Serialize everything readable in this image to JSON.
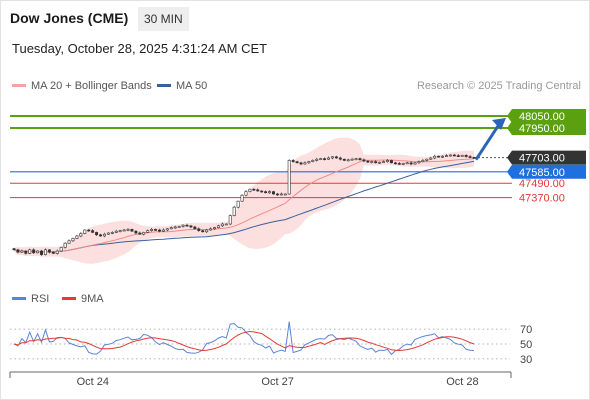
{
  "header": {
    "title": "Dow Jones (CME)",
    "timeframe": "30 MIN",
    "datetime": "Tuesday, October 28, 2025 4:31:24 AM CET"
  },
  "legend": {
    "items": [
      {
        "label": "MA 20 + Bollinger Bands",
        "color": "#f4a3a3"
      },
      {
        "label": "MA 50",
        "color": "#3b5f9e"
      }
    ],
    "credit": "Research © 2025 Trading Central"
  },
  "colors": {
    "target": "#5aa00f",
    "resistance_price": "#333333",
    "pivot": "#1e6fe0",
    "support": "#e53935",
    "bb_fill": "#fbdada",
    "ma20": "#f08a8a",
    "ma50": "#3b5f9e",
    "rsi": "#5b84d6",
    "rsi_ma": "#e53935",
    "arrow": "#2a65b8"
  },
  "price_levels": [
    {
      "value": 48050,
      "label": "48050.00",
      "kind": "target"
    },
    {
      "value": 47950,
      "label": "47950.00",
      "kind": "target"
    },
    {
      "value": 47703,
      "label": "47703.00",
      "kind": "last"
    },
    {
      "value": 47585,
      "label": "47585.00",
      "kind": "pivot"
    },
    {
      "value": 47490,
      "label": "47490.00",
      "kind": "support"
    },
    {
      "value": 47370,
      "label": "47370.00",
      "kind": "support"
    }
  ],
  "rsi_panel": {
    "legend": [
      {
        "label": "RSI",
        "color": "#5b84d6"
      },
      {
        "label": "9MA",
        "color": "#e53935"
      }
    ],
    "levels": [
      {
        "value": 70,
        "label": "70"
      },
      {
        "value": 50,
        "label": "50"
      },
      {
        "value": 30,
        "label": "30"
      }
    ]
  },
  "x_axis": {
    "labels": [
      {
        "label": "Oct 24",
        "index": 20
      },
      {
        "label": "Oct 27",
        "index": 67
      },
      {
        "label": "Oct 28",
        "index": 114
      }
    ]
  },
  "chart_data": {
    "type": "candlestick",
    "title": "",
    "xlabel": "",
    "ylabel": "",
    "ylim": [
      46700,
      48200
    ],
    "series": [
      {
        "name": "Close",
        "values": [
          46935,
          46915,
          46925,
          46905,
          46935,
          46910,
          46925,
          46895,
          46935,
          46915,
          46905,
          46925,
          46955,
          46990,
          47010,
          47030,
          47050,
          47070,
          47100,
          47095,
          47080,
          47060,
          47050,
          47065,
          47075,
          47080,
          47090,
          47095,
          47100,
          47105,
          47090,
          47075,
          47065,
          47080,
          47095,
          47105,
          47100,
          47090,
          47100,
          47110,
          47120,
          47125,
          47130,
          47140,
          47135,
          47125,
          47110,
          47095,
          47085,
          47100,
          47110,
          47120,
          47135,
          47150,
          47150,
          47220,
          47290,
          47340,
          47390,
          47420,
          47440,
          47435,
          47425,
          47420,
          47410,
          47420,
          47400,
          47395,
          47400,
          47400,
          47680,
          47670,
          47660,
          47650,
          47660,
          47670,
          47680,
          47690,
          47695,
          47690,
          47700,
          47710,
          47700,
          47690,
          47680,
          47685,
          47690,
          47695,
          47685,
          47675,
          47665,
          47670,
          47660,
          47665,
          47670,
          47680,
          47660,
          47655,
          47650,
          47655,
          47660,
          47650,
          47660,
          47670,
          47680,
          47690,
          47700,
          47715,
          47710,
          47715,
          47720,
          47725,
          47720,
          47718,
          47722,
          47712,
          47705,
          47703
        ]
      }
    ],
    "ma20_band": {
      "name": "MA 20 + Bollinger Bands"
    },
    "ma50": {
      "name": "MA 50"
    },
    "rsi": {
      "name": "RSI"
    },
    "rsi_ma": {
      "name": "9MA"
    },
    "rsi_ylim": [
      0,
      100
    ]
  }
}
